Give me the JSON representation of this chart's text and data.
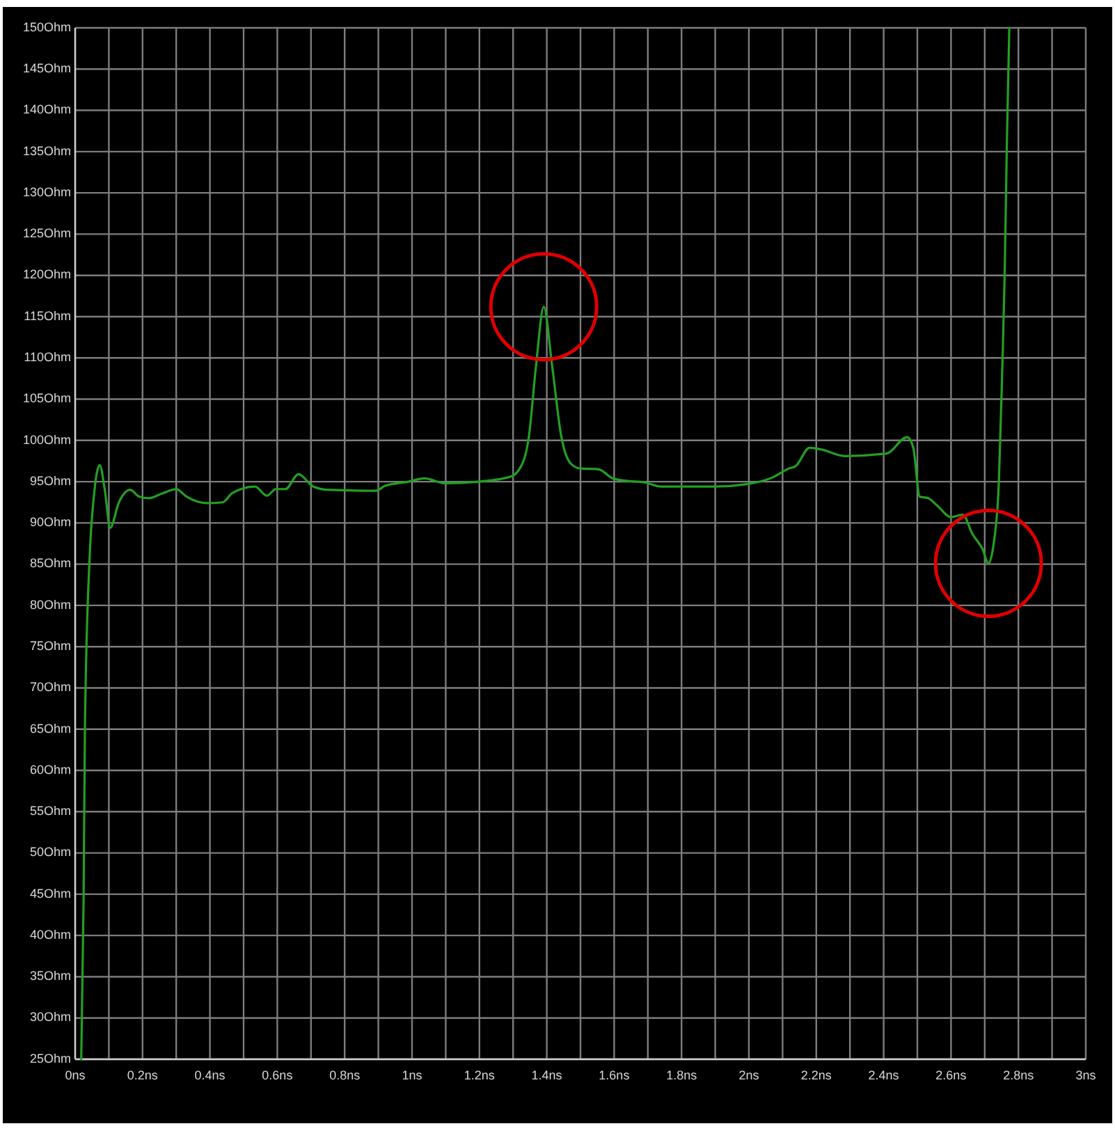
{
  "chart_data": {
    "type": "line",
    "x": [
      0.018,
      0.025,
      0.029,
      0.043,
      0.055,
      0.073,
      0.088,
      0.104,
      0.13,
      0.163,
      0.19,
      0.218,
      0.26,
      0.3,
      0.33,
      0.39,
      0.438,
      0.466,
      0.534,
      0.569,
      0.596,
      0.624,
      0.663,
      0.707,
      0.755,
      0.893,
      0.92,
      0.989,
      1.037,
      1.099,
      1.196,
      1.292,
      1.32,
      1.347,
      1.368,
      1.391,
      1.416,
      1.443,
      1.471,
      1.499,
      1.554,
      1.595,
      1.636,
      1.691,
      1.74,
      1.898,
      1.994,
      2.07,
      2.119,
      2.139,
      2.18,
      2.215,
      2.284,
      2.408,
      2.47,
      2.488,
      2.507,
      2.532,
      2.559,
      2.6,
      2.635,
      2.663,
      2.694,
      2.711,
      2.727,
      2.742,
      2.752,
      2.759,
      2.766,
      2.773
    ],
    "series": [
      {
        "color": "#23a023",
        "values": [
          25,
          44.3,
          65.2,
          85.9,
          93,
          97,
          94,
          89.4,
          92.5,
          94,
          93.2,
          93,
          93.6,
          94.1,
          93.2,
          92.4,
          92.5,
          93.6,
          94.4,
          93.3,
          94.1,
          94.1,
          95.9,
          94.4,
          94,
          93.9,
          94.5,
          95,
          95.4,
          94.8,
          95,
          95.6,
          96.6,
          100.5,
          109,
          116.2,
          109,
          100.5,
          97.2,
          96.6,
          96.5,
          95.4,
          95.1,
          94.9,
          94.4,
          94.4,
          94.7,
          95.5,
          96.6,
          96.9,
          99.1,
          98.9,
          98.1,
          98.4,
          100.4,
          99.1,
          93.2,
          93,
          92.1,
          90.7,
          91,
          88.7,
          86.8,
          85.1,
          87.6,
          94.9,
          108.4,
          119.6,
          136.5,
          150
        ]
      }
    ],
    "xlim": [
      0,
      3
    ],
    "ylim": [
      25,
      150
    ],
    "xticks": [
      {
        "value": 0,
        "label": "0ns"
      },
      {
        "value": 0.1,
        "label": null
      },
      {
        "value": 0.2,
        "label": "0.2ns"
      },
      {
        "value": 0.3,
        "label": null
      },
      {
        "value": 0.4,
        "label": "0.4ns"
      },
      {
        "value": 0.5,
        "label": null
      },
      {
        "value": 0.6,
        "label": "0.6ns"
      },
      {
        "value": 0.7,
        "label": null
      },
      {
        "value": 0.8,
        "label": "0.8ns"
      },
      {
        "value": 0.9,
        "label": null
      },
      {
        "value": 1,
        "label": "1ns"
      },
      {
        "value": 1.1,
        "label": null
      },
      {
        "value": 1.2,
        "label": "1.2ns"
      },
      {
        "value": 1.3,
        "label": null
      },
      {
        "value": 1.4,
        "label": "1.4ns"
      },
      {
        "value": 1.5,
        "label": null
      },
      {
        "value": 1.6,
        "label": "1.6ns"
      },
      {
        "value": 1.7,
        "label": null
      },
      {
        "value": 1.8,
        "label": "1.8ns"
      },
      {
        "value": 1.9,
        "label": null
      },
      {
        "value": 2,
        "label": "2ns"
      },
      {
        "value": 2.1,
        "label": null
      },
      {
        "value": 2.2,
        "label": "2.2ns"
      },
      {
        "value": 2.3,
        "label": null
      },
      {
        "value": 2.4,
        "label": "2.4ns"
      },
      {
        "value": 2.5,
        "label": null
      },
      {
        "value": 2.6,
        "label": "2.6ns"
      },
      {
        "value": 2.7,
        "label": null
      },
      {
        "value": 2.8,
        "label": "2.8ns"
      },
      {
        "value": 2.9,
        "label": null
      },
      {
        "value": 3,
        "label": "3ns"
      }
    ],
    "yticks": [
      {
        "value": 25,
        "label": "25Ohm"
      },
      {
        "value": 30,
        "label": "30Ohm"
      },
      {
        "value": 35,
        "label": "35Ohm"
      },
      {
        "value": 40,
        "label": "40Ohm"
      },
      {
        "value": 45,
        "label": "45Ohm"
      },
      {
        "value": 50,
        "label": "50Ohm"
      },
      {
        "value": 55,
        "label": "55Ohm"
      },
      {
        "value": 60,
        "label": "60Ohm"
      },
      {
        "value": 65,
        "label": "65Ohm"
      },
      {
        "value": 70,
        "label": "70Ohm"
      },
      {
        "value": 75,
        "label": "75Ohm"
      },
      {
        "value": 80,
        "label": "80Ohm"
      },
      {
        "value": 85,
        "label": "85Ohm"
      },
      {
        "value": 90,
        "label": "90Ohm"
      },
      {
        "value": 95,
        "label": "95Ohm"
      },
      {
        "value": 100,
        "label": "100Ohm"
      },
      {
        "value": 105,
        "label": "105Ohm"
      },
      {
        "value": 110,
        "label": "110Ohm"
      },
      {
        "value": 115,
        "label": "115Ohm"
      },
      {
        "value": 120,
        "label": "120Ohm"
      },
      {
        "value": 125,
        "label": "125Ohm"
      },
      {
        "value": 130,
        "label": "130Ohm"
      },
      {
        "value": 135,
        "label": "135Ohm"
      },
      {
        "value": 140,
        "label": "140Ohm"
      },
      {
        "value": 145,
        "label": "145Ohm"
      },
      {
        "value": 150,
        "label": "150Ohm"
      }
    ],
    "grid": true
  }
}
